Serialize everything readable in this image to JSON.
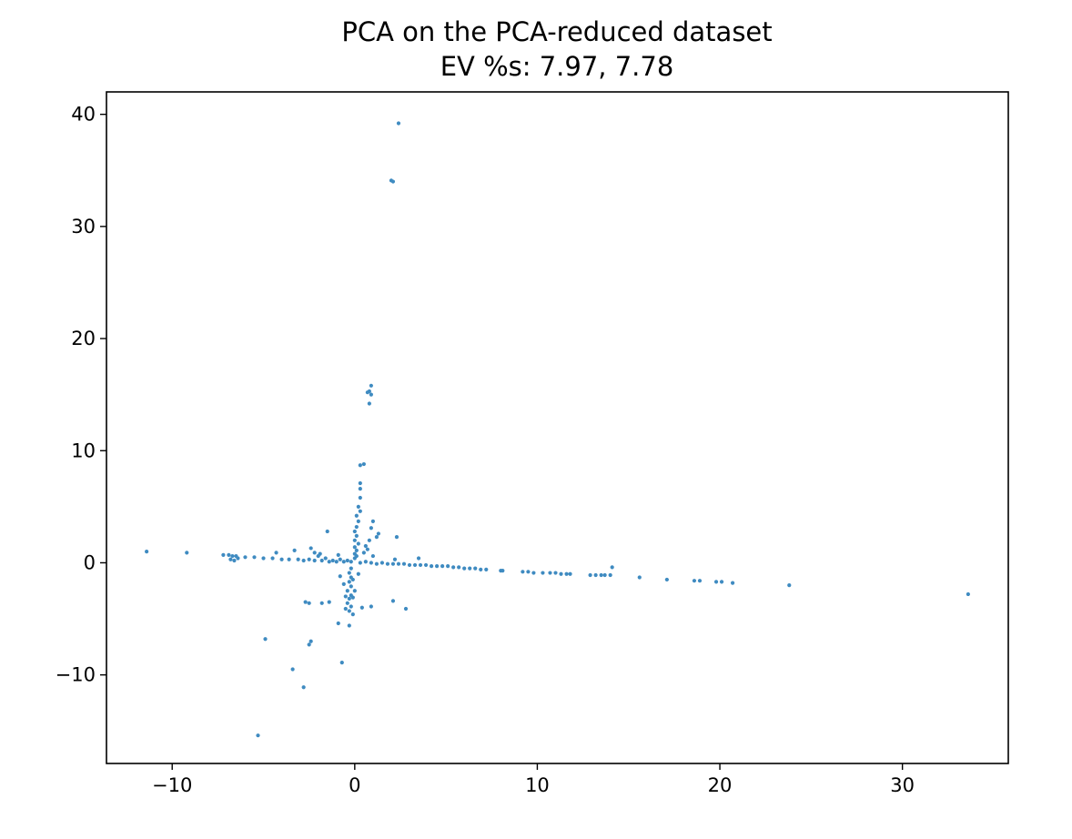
{
  "chart_data": {
    "type": "scatter",
    "title": "PCA on the PCA-reduced dataset",
    "subtitle": "EV %s: 7.97, 7.78",
    "xlabel": "",
    "ylabel": "",
    "xlim": [
      -13.6,
      35.8
    ],
    "ylim": [
      -17.9,
      42.0
    ],
    "xticks": [
      -10,
      0,
      10,
      20,
      30
    ],
    "yticks": [
      -10,
      0,
      10,
      20,
      30,
      40
    ],
    "xtick_labels": [
      "−10",
      "0",
      "10",
      "20",
      "30"
    ],
    "ytick_labels": [
      "−10",
      "0",
      "10",
      "20",
      "30",
      "40"
    ],
    "grid": false,
    "legend": false,
    "point_color": "#3f8bc1",
    "series": [
      {
        "points": [
          [
            2.4,
            39.2
          ],
          [
            2.0,
            34.1
          ],
          [
            2.1,
            34.0
          ],
          [
            0.9,
            15.8
          ],
          [
            0.8,
            15.3
          ],
          [
            0.9,
            15.0
          ],
          [
            0.7,
            15.2
          ],
          [
            0.8,
            14.2
          ],
          [
            0.5,
            8.8
          ],
          [
            0.3,
            8.7
          ],
          [
            0.3,
            7.1
          ],
          [
            0.3,
            6.6
          ],
          [
            0.3,
            5.8
          ],
          [
            0.2,
            5.0
          ],
          [
            0.3,
            4.6
          ],
          [
            0.1,
            4.2
          ],
          [
            0.2,
            3.7
          ],
          [
            0.1,
            3.2
          ],
          [
            0.0,
            2.8
          ],
          [
            0.1,
            2.4
          ],
          [
            0.0,
            2.0
          ],
          [
            0.2,
            1.7
          ],
          [
            0.0,
            1.4
          ],
          [
            0.1,
            1.1
          ],
          [
            0.0,
            0.8
          ],
          [
            0.1,
            0.6
          ],
          [
            0.0,
            0.4
          ],
          [
            1.0,
            3.7
          ],
          [
            0.9,
            3.1
          ],
          [
            1.3,
            2.6
          ],
          [
            1.2,
            2.3
          ],
          [
            2.3,
            2.3
          ],
          [
            0.8,
            2.0
          ],
          [
            0.6,
            1.5
          ],
          [
            0.7,
            1.2
          ],
          [
            0.5,
            0.9
          ],
          [
            -1.5,
            2.8
          ],
          [
            -11.4,
            1.0
          ],
          [
            -9.2,
            0.9
          ],
          [
            -7.2,
            0.7
          ],
          [
            -6.9,
            0.7
          ],
          [
            -6.7,
            0.6
          ],
          [
            -6.5,
            0.6
          ],
          [
            -6.8,
            0.3
          ],
          [
            -6.4,
            0.4
          ],
          [
            -6.6,
            0.2
          ],
          [
            -6.0,
            0.5
          ],
          [
            -5.5,
            0.5
          ],
          [
            -5.0,
            0.4
          ],
          [
            -4.5,
            0.4
          ],
          [
            -4.0,
            0.3
          ],
          [
            -3.6,
            0.3
          ],
          [
            -3.3,
            1.1
          ],
          [
            -3.1,
            0.3
          ],
          [
            -2.8,
            0.2
          ],
          [
            -2.5,
            0.3
          ],
          [
            -2.2,
            0.2
          ],
          [
            -2.0,
            0.6
          ],
          [
            -1.8,
            0.2
          ],
          [
            -1.6,
            0.4
          ],
          [
            -1.4,
            0.1
          ],
          [
            -1.2,
            0.2
          ],
          [
            -1.0,
            0.1
          ],
          [
            -0.8,
            0.3
          ],
          [
            -0.6,
            0.1
          ],
          [
            -0.4,
            0.2
          ],
          [
            -0.2,
            0.1
          ],
          [
            -2.4,
            1.3
          ],
          [
            -2.2,
            0.9
          ],
          [
            -1.9,
            0.8
          ],
          [
            -4.3,
            0.9
          ],
          [
            -0.9,
            0.7
          ],
          [
            0.3,
            0.0
          ],
          [
            0.6,
            0.1
          ],
          [
            0.9,
            0.0
          ],
          [
            1.2,
            -0.1
          ],
          [
            1.5,
            0.0
          ],
          [
            1.8,
            -0.1
          ],
          [
            2.1,
            -0.1
          ],
          [
            2.4,
            -0.1
          ],
          [
            2.7,
            -0.1
          ],
          [
            3.0,
            -0.2
          ],
          [
            3.3,
            -0.2
          ],
          [
            3.6,
            -0.2
          ],
          [
            3.9,
            -0.2
          ],
          [
            4.2,
            -0.3
          ],
          [
            4.5,
            -0.3
          ],
          [
            4.8,
            -0.3
          ],
          [
            5.1,
            -0.3
          ],
          [
            5.4,
            -0.4
          ],
          [
            5.7,
            -0.4
          ],
          [
            6.0,
            -0.5
          ],
          [
            6.3,
            -0.5
          ],
          [
            6.6,
            -0.5
          ],
          [
            6.9,
            -0.6
          ],
          [
            7.2,
            -0.6
          ],
          [
            8.0,
            -0.7
          ],
          [
            8.1,
            -0.7
          ],
          [
            9.2,
            -0.8
          ],
          [
            9.5,
            -0.8
          ],
          [
            9.8,
            -0.9
          ],
          [
            10.3,
            -0.9
          ],
          [
            10.7,
            -0.9
          ],
          [
            11.0,
            -0.9
          ],
          [
            11.3,
            -1.0
          ],
          [
            11.6,
            -1.0
          ],
          [
            11.8,
            -1.0
          ],
          [
            12.9,
            -1.1
          ],
          [
            13.2,
            -1.1
          ],
          [
            13.5,
            -1.1
          ],
          [
            13.7,
            -1.1
          ],
          [
            14.1,
            -0.4
          ],
          [
            14.0,
            -1.1
          ],
          [
            15.6,
            -1.3
          ],
          [
            17.1,
            -1.5
          ],
          [
            18.6,
            -1.6
          ],
          [
            18.9,
            -1.6
          ],
          [
            19.8,
            -1.7
          ],
          [
            20.1,
            -1.7
          ],
          [
            20.7,
            -1.8
          ],
          [
            23.8,
            -2.0
          ],
          [
            33.6,
            -2.8
          ],
          [
            2.2,
            0.3
          ],
          [
            3.5,
            0.4
          ],
          [
            1.0,
            0.6
          ],
          [
            -0.2,
            -0.5
          ],
          [
            -0.3,
            -0.9
          ],
          [
            -0.2,
            -1.3
          ],
          [
            -0.3,
            -1.7
          ],
          [
            -0.2,
            -2.1
          ],
          [
            -0.4,
            -2.5
          ],
          [
            -0.2,
            -2.9
          ],
          [
            -0.3,
            -3.2
          ],
          [
            -0.4,
            -3.6
          ],
          [
            -0.2,
            -3.9
          ],
          [
            -0.3,
            -4.3
          ],
          [
            -0.1,
            -4.6
          ],
          [
            -0.5,
            -3.0
          ],
          [
            -0.6,
            -1.9
          ],
          [
            -0.1,
            -1.5
          ],
          [
            0.2,
            -1.0
          ],
          [
            -0.8,
            -1.2
          ],
          [
            -0.5,
            -4.1
          ],
          [
            -0.1,
            -3.1
          ],
          [
            0.0,
            -2.5
          ],
          [
            -2.7,
            -3.5
          ],
          [
            -2.5,
            -3.6
          ],
          [
            -1.8,
            -3.6
          ],
          [
            -1.4,
            -3.5
          ],
          [
            -0.9,
            -5.4
          ],
          [
            -0.3,
            -5.6
          ],
          [
            0.4,
            -4.0
          ],
          [
            0.9,
            -3.9
          ],
          [
            2.1,
            -3.4
          ],
          [
            2.8,
            -4.1
          ],
          [
            -2.4,
            -7.0
          ],
          [
            -2.5,
            -7.3
          ],
          [
            -4.9,
            -6.8
          ],
          [
            -0.7,
            -8.9
          ],
          [
            -3.4,
            -9.5
          ],
          [
            -2.8,
            -11.1
          ],
          [
            -5.3,
            -15.4
          ]
        ]
      }
    ]
  }
}
